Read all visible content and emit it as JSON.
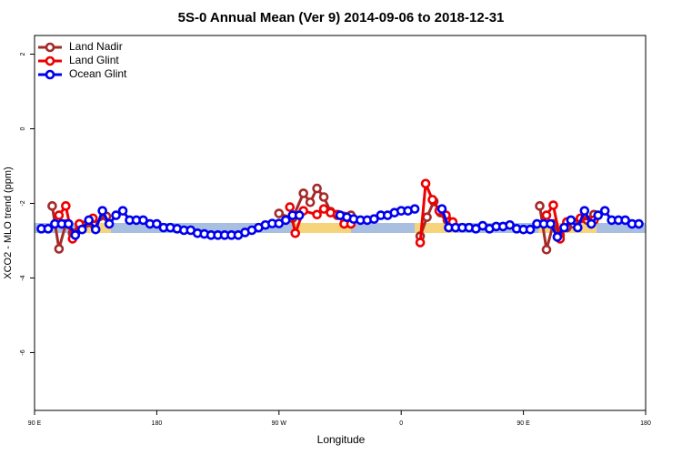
{
  "chart_data": {
    "type": "line",
    "title": "5S-0 Annual Mean (Ver 9)   2014-09-06 to 2018-12-31",
    "x_label": "Longitude",
    "y_label": "XCO2 - MLO trend (ppm)",
    "xlim": [
      90,
      540
    ],
    "ylim": [
      -7.55,
      2.5
    ],
    "xticks": [
      {
        "value": 90,
        "label": "90 E"
      },
      180,
      {
        "value": 270,
        "label": "90 W"
      },
      {
        "value": 360,
        "label": "0"
      },
      {
        "value": 450,
        "label": "90 E"
      },
      {
        "value": 540,
        "label": "180"
      }
    ],
    "yticks": [
      -6,
      -4,
      -2,
      0,
      2
    ],
    "legend": "top-left",
    "series": [
      {
        "name": "Land Nadir",
        "color": "#a52a2a",
        "x": [
          103,
          108,
          113,
          118,
          123,
          133,
          143,
          null,
          270,
          280,
          288,
          293,
          298,
          303,
          308,
          313,
          318,
          323,
          null,
          374,
          379,
          384,
          389,
          394,
          null,
          462,
          467,
          472,
          477,
          482,
          487,
          497,
          502
        ],
        "values": [
          -2.07,
          -3.22,
          -2.55,
          -2.8,
          -2.7,
          -2.55,
          -2.35,
          null,
          -2.27,
          -2.4,
          -1.73,
          -1.97,
          -1.6,
          -1.83,
          -2.22,
          -2.32,
          -2.35,
          -2.32,
          null,
          -2.88,
          -2.37,
          -1.95,
          -2.25,
          -2.45,
          null,
          -2.07,
          -3.24,
          -2.55,
          -2.85,
          -2.65,
          -2.55,
          -2.45,
          -2.3
        ]
      },
      {
        "name": "Land Glint",
        "color": "#ee0000",
        "x": [
          108,
          113,
          118,
          123,
          133,
          null,
          278,
          282,
          288,
          298,
          303,
          308,
          313,
          318,
          323,
          null,
          374,
          378,
          383,
          388,
          393,
          398,
          null,
          467,
          472,
          477,
          482,
          492,
          502
        ],
        "values": [
          -2.32,
          -2.07,
          -2.95,
          -2.55,
          -2.4,
          null,
          -2.1,
          -2.8,
          -2.2,
          -2.3,
          -2.15,
          -2.25,
          -2.3,
          -2.55,
          -2.55,
          null,
          -3.05,
          -1.47,
          -1.9,
          -2.2,
          -2.32,
          -2.5,
          null,
          -2.32,
          -2.05,
          -2.95,
          -2.5,
          -2.4,
          -2.45
        ]
      },
      {
        "name": "Ocean Glint",
        "color": "#0000ee",
        "x": [
          95,
          100,
          105,
          110,
          115,
          120,
          125,
          130,
          135,
          140,
          145,
          150,
          155,
          160,
          165,
          170,
          175,
          180,
          185,
          190,
          195,
          200,
          205,
          210,
          215,
          220,
          225,
          230,
          235,
          240,
          245,
          250,
          255,
          260,
          265,
          270,
          275,
          280,
          285,
          null,
          315,
          320,
          325,
          330,
          335,
          340,
          345,
          350,
          355,
          360,
          365,
          370,
          null,
          390,
          395,
          400,
          405,
          410,
          415,
          420,
          425,
          430,
          435,
          440,
          445,
          450,
          455,
          460,
          465,
          470,
          475,
          480,
          485,
          490,
          495,
          500,
          505,
          510,
          515,
          520,
          525,
          530,
          535
        ],
        "values": [
          -2.68,
          -2.68,
          -2.55,
          -2.55,
          -2.55,
          -2.85,
          -2.7,
          -2.45,
          -2.7,
          -2.2,
          -2.55,
          -2.32,
          -2.2,
          -2.45,
          -2.45,
          -2.45,
          -2.55,
          -2.55,
          -2.65,
          -2.65,
          -2.68,
          -2.72,
          -2.72,
          -2.8,
          -2.82,
          -2.85,
          -2.85,
          -2.85,
          -2.85,
          -2.85,
          -2.78,
          -2.72,
          -2.65,
          -2.58,
          -2.54,
          -2.54,
          -2.45,
          -2.32,
          -2.32,
          null,
          -2.32,
          -2.37,
          -2.42,
          -2.45,
          -2.45,
          -2.42,
          -2.32,
          -2.32,
          -2.25,
          -2.2,
          -2.2,
          -2.15,
          null,
          -2.15,
          -2.65,
          -2.65,
          -2.65,
          -2.65,
          -2.68,
          -2.6,
          -2.68,
          -2.62,
          -2.62,
          -2.58,
          -2.68,
          -2.7,
          -2.7,
          -2.55,
          -2.55,
          -2.55,
          -2.9,
          -2.65,
          -2.45,
          -2.65,
          -2.2,
          -2.55,
          -2.32,
          -2.2,
          -2.45,
          -2.45,
          -2.45,
          -2.55,
          -2.55
        ]
      }
    ]
  }
}
